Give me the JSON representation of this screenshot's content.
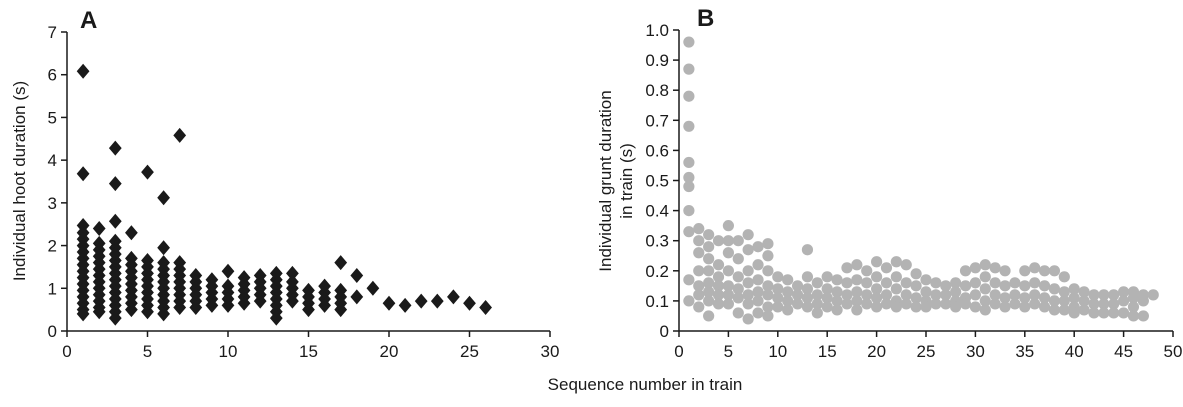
{
  "shared_xlabel": "Sequence number in train",
  "chart_data": [
    {
      "panel": "A",
      "type": "scatter",
      "marker": "diamond",
      "color": "#1a1a1a",
      "ylabel": [
        "Individual hoot duration (s)"
      ],
      "xlim": [
        0,
        30
      ],
      "ylim": [
        0,
        7
      ],
      "xticks": [
        0,
        5,
        10,
        15,
        20,
        25,
        30
      ],
      "yticks": [
        0,
        1,
        2,
        3,
        4,
        5,
        6,
        7
      ],
      "points": [
        [
          1,
          6.08
        ],
        [
          1,
          3.68
        ],
        [
          1,
          2.47
        ],
        [
          1,
          2.3
        ],
        [
          1,
          2.15
        ],
        [
          1,
          2.0
        ],
        [
          1,
          1.85
        ],
        [
          1,
          1.7
        ],
        [
          1,
          1.55
        ],
        [
          1,
          1.4
        ],
        [
          1,
          1.25
        ],
        [
          1,
          1.1
        ],
        [
          1,
          0.95
        ],
        [
          1,
          0.8
        ],
        [
          1,
          0.65
        ],
        [
          1,
          0.5
        ],
        [
          1,
          0.4
        ],
        [
          2,
          2.4
        ],
        [
          2,
          2.05
        ],
        [
          2,
          1.9
        ],
        [
          2,
          1.75
        ],
        [
          2,
          1.6
        ],
        [
          2,
          1.45
        ],
        [
          2,
          1.3
        ],
        [
          2,
          1.15
        ],
        [
          2,
          1.0
        ],
        [
          2,
          0.85
        ],
        [
          2,
          0.7
        ],
        [
          2,
          0.55
        ],
        [
          2,
          0.45
        ],
        [
          3,
          4.28
        ],
        [
          3,
          3.45
        ],
        [
          3,
          2.57
        ],
        [
          3,
          2.1
        ],
        [
          3,
          1.95
        ],
        [
          3,
          1.8
        ],
        [
          3,
          1.65
        ],
        [
          3,
          1.5
        ],
        [
          3,
          1.35
        ],
        [
          3,
          1.2
        ],
        [
          3,
          1.05
        ],
        [
          3,
          0.9
        ],
        [
          3,
          0.75
        ],
        [
          3,
          0.6
        ],
        [
          3,
          0.45
        ],
        [
          3,
          0.3
        ],
        [
          4,
          2.3
        ],
        [
          4,
          1.7
        ],
        [
          4,
          1.55
        ],
        [
          4,
          1.4
        ],
        [
          4,
          1.25
        ],
        [
          4,
          1.1
        ],
        [
          4,
          0.95
        ],
        [
          4,
          0.8
        ],
        [
          4,
          0.65
        ],
        [
          4,
          0.5
        ],
        [
          5,
          3.72
        ],
        [
          5,
          1.65
        ],
        [
          5,
          1.5
        ],
        [
          5,
          1.35
        ],
        [
          5,
          1.2
        ],
        [
          5,
          1.05
        ],
        [
          5,
          0.9
        ],
        [
          5,
          0.75
        ],
        [
          5,
          0.6
        ],
        [
          5,
          0.45
        ],
        [
          6,
          3.12
        ],
        [
          6,
          1.95
        ],
        [
          6,
          1.6
        ],
        [
          6,
          1.45
        ],
        [
          6,
          1.3
        ],
        [
          6,
          1.15
        ],
        [
          6,
          1.0
        ],
        [
          6,
          0.85
        ],
        [
          6,
          0.7
        ],
        [
          6,
          0.55
        ],
        [
          6,
          0.4
        ],
        [
          7,
          4.58
        ],
        [
          7,
          1.6
        ],
        [
          7,
          1.45
        ],
        [
          7,
          1.3
        ],
        [
          7,
          1.15
        ],
        [
          7,
          1.0
        ],
        [
          7,
          0.85
        ],
        [
          7,
          0.7
        ],
        [
          7,
          0.55
        ],
        [
          8,
          1.3
        ],
        [
          8,
          1.15
        ],
        [
          8,
          1.0
        ],
        [
          8,
          0.85
        ],
        [
          8,
          0.7
        ],
        [
          8,
          0.55
        ],
        [
          9,
          1.2
        ],
        [
          9,
          1.05
        ],
        [
          9,
          0.9
        ],
        [
          9,
          0.75
        ],
        [
          9,
          0.6
        ],
        [
          10,
          1.4
        ],
        [
          10,
          1.05
        ],
        [
          10,
          0.9
        ],
        [
          10,
          0.75
        ],
        [
          10,
          0.6
        ],
        [
          11,
          1.25
        ],
        [
          11,
          1.1
        ],
        [
          11,
          0.95
        ],
        [
          11,
          0.8
        ],
        [
          11,
          0.65
        ],
        [
          12,
          1.3
        ],
        [
          12,
          1.15
        ],
        [
          12,
          1.0
        ],
        [
          12,
          0.85
        ],
        [
          12,
          0.7
        ],
        [
          13,
          1.35
        ],
        [
          13,
          1.2
        ],
        [
          13,
          1.05
        ],
        [
          13,
          0.9
        ],
        [
          13,
          0.75
        ],
        [
          13,
          0.6
        ],
        [
          13,
          0.45
        ],
        [
          13,
          0.3
        ],
        [
          14,
          1.35
        ],
        [
          14,
          1.15
        ],
        [
          14,
          1.0
        ],
        [
          14,
          0.85
        ],
        [
          14,
          0.7
        ],
        [
          15,
          0.95
        ],
        [
          15,
          0.8
        ],
        [
          15,
          0.65
        ],
        [
          15,
          0.5
        ],
        [
          16,
          1.05
        ],
        [
          16,
          0.9
        ],
        [
          16,
          0.75
        ],
        [
          16,
          0.6
        ],
        [
          17,
          1.6
        ],
        [
          17,
          0.95
        ],
        [
          17,
          0.8
        ],
        [
          17,
          0.65
        ],
        [
          17,
          0.5
        ],
        [
          18,
          1.3
        ],
        [
          18,
          0.8
        ],
        [
          19,
          1.0
        ],
        [
          20,
          0.65
        ],
        [
          21,
          0.6
        ],
        [
          22,
          0.7
        ],
        [
          23,
          0.7
        ],
        [
          24,
          0.8
        ],
        [
          25,
          0.65
        ],
        [
          26,
          0.55
        ]
      ]
    },
    {
      "panel": "B",
      "type": "scatter",
      "marker": "circle",
      "color": "#b3b3b3",
      "ylabel": [
        "Individual grunt duration",
        "in train (s)"
      ],
      "xlim": [
        0,
        50
      ],
      "ylim": [
        0,
        1.0
      ],
      "xticks": [
        0,
        5,
        10,
        15,
        20,
        25,
        30,
        35,
        40,
        45,
        50
      ],
      "yticks": [
        0,
        0.1,
        0.2,
        0.3,
        0.4,
        0.5,
        0.6,
        0.7,
        0.8,
        0.9,
        1.0
      ],
      "ytick_labels": [
        "0",
        "0.1",
        "0.2",
        "0.3",
        "0.4",
        "0.5",
        "0.6",
        "0.7",
        "0.8",
        "0.9",
        "1.0"
      ],
      "points": [
        [
          1,
          0.96
        ],
        [
          1,
          0.87
        ],
        [
          1,
          0.78
        ],
        [
          1,
          0.68
        ],
        [
          1,
          0.56
        ],
        [
          1,
          0.51
        ],
        [
          1,
          0.48
        ],
        [
          1,
          0.4
        ],
        [
          1,
          0.33
        ],
        [
          1,
          0.17
        ],
        [
          1,
          0.1
        ],
        [
          2,
          0.34
        ],
        [
          2,
          0.3
        ],
        [
          2,
          0.26
        ],
        [
          2,
          0.2
        ],
        [
          2,
          0.15
        ],
        [
          2,
          0.12
        ],
        [
          2,
          0.08
        ],
        [
          3,
          0.32
        ],
        [
          3,
          0.28
        ],
        [
          3,
          0.24
        ],
        [
          3,
          0.2
        ],
        [
          3,
          0.16
        ],
        [
          3,
          0.13
        ],
        [
          3,
          0.1
        ],
        [
          3,
          0.05
        ],
        [
          4,
          0.3
        ],
        [
          4,
          0.22
        ],
        [
          4,
          0.18
        ],
        [
          4,
          0.15
        ],
        [
          4,
          0.12
        ],
        [
          4,
          0.09
        ],
        [
          5,
          0.35
        ],
        [
          5,
          0.3
        ],
        [
          5,
          0.26
        ],
        [
          5,
          0.2
        ],
        [
          5,
          0.15
        ],
        [
          5,
          0.12
        ],
        [
          5,
          0.09
        ],
        [
          6,
          0.3
        ],
        [
          6,
          0.24
        ],
        [
          6,
          0.18
        ],
        [
          6,
          0.14
        ],
        [
          6,
          0.11
        ],
        [
          6,
          0.06
        ],
        [
          7,
          0.32
        ],
        [
          7,
          0.27
        ],
        [
          7,
          0.2
        ],
        [
          7,
          0.16
        ],
        [
          7,
          0.12
        ],
        [
          7,
          0.09
        ],
        [
          7,
          0.04
        ],
        [
          8,
          0.28
        ],
        [
          8,
          0.22
        ],
        [
          8,
          0.17
        ],
        [
          8,
          0.13
        ],
        [
          8,
          0.1
        ],
        [
          8,
          0.06
        ],
        [
          9,
          0.29
        ],
        [
          9,
          0.25
        ],
        [
          9,
          0.2
        ],
        [
          9,
          0.15
        ],
        [
          9,
          0.12
        ],
        [
          9,
          0.08
        ],
        [
          9,
          0.05
        ],
        [
          10,
          0.18
        ],
        [
          10,
          0.14
        ],
        [
          10,
          0.11
        ],
        [
          10,
          0.08
        ],
        [
          11,
          0.17
        ],
        [
          11,
          0.13
        ],
        [
          11,
          0.1
        ],
        [
          11,
          0.07
        ],
        [
          12,
          0.15
        ],
        [
          12,
          0.12
        ],
        [
          12,
          0.09
        ],
        [
          13,
          0.27
        ],
        [
          13,
          0.18
        ],
        [
          13,
          0.14
        ],
        [
          13,
          0.11
        ],
        [
          13,
          0.08
        ],
        [
          14,
          0.16
        ],
        [
          14,
          0.12
        ],
        [
          14,
          0.09
        ],
        [
          14,
          0.06
        ],
        [
          15,
          0.18
        ],
        [
          15,
          0.14
        ],
        [
          15,
          0.11
        ],
        [
          15,
          0.08
        ],
        [
          16,
          0.17
        ],
        [
          16,
          0.13
        ],
        [
          16,
          0.1
        ],
        [
          16,
          0.07
        ],
        [
          17,
          0.21
        ],
        [
          17,
          0.16
        ],
        [
          17,
          0.12
        ],
        [
          17,
          0.09
        ],
        [
          18,
          0.22
        ],
        [
          18,
          0.17
        ],
        [
          18,
          0.13
        ],
        [
          18,
          0.1
        ],
        [
          18,
          0.07
        ],
        [
          19,
          0.2
        ],
        [
          19,
          0.16
        ],
        [
          19,
          0.12
        ],
        [
          19,
          0.09
        ],
        [
          20,
          0.23
        ],
        [
          20,
          0.18
        ],
        [
          20,
          0.14
        ],
        [
          20,
          0.11
        ],
        [
          20,
          0.08
        ],
        [
          21,
          0.21
        ],
        [
          21,
          0.16
        ],
        [
          21,
          0.12
        ],
        [
          21,
          0.09
        ],
        [
          22,
          0.23
        ],
        [
          22,
          0.18
        ],
        [
          22,
          0.14
        ],
        [
          22,
          0.1
        ],
        [
          22,
          0.08
        ],
        [
          23,
          0.22
        ],
        [
          23,
          0.16
        ],
        [
          23,
          0.12
        ],
        [
          23,
          0.09
        ],
        [
          24,
          0.19
        ],
        [
          24,
          0.15
        ],
        [
          24,
          0.11
        ],
        [
          24,
          0.08
        ],
        [
          25,
          0.17
        ],
        [
          25,
          0.13
        ],
        [
          25,
          0.1
        ],
        [
          25,
          0.08
        ],
        [
          26,
          0.16
        ],
        [
          26,
          0.12
        ],
        [
          26,
          0.09
        ],
        [
          27,
          0.15
        ],
        [
          27,
          0.12
        ],
        [
          27,
          0.09
        ],
        [
          28,
          0.16
        ],
        [
          28,
          0.13
        ],
        [
          28,
          0.1
        ],
        [
          28,
          0.08
        ],
        [
          29,
          0.2
        ],
        [
          29,
          0.15
        ],
        [
          29,
          0.11
        ],
        [
          29,
          0.09
        ],
        [
          30,
          0.21
        ],
        [
          30,
          0.16
        ],
        [
          30,
          0.12
        ],
        [
          30,
          0.08
        ],
        [
          31,
          0.22
        ],
        [
          31,
          0.18
        ],
        [
          31,
          0.14
        ],
        [
          31,
          0.1
        ],
        [
          31,
          0.07
        ],
        [
          32,
          0.21
        ],
        [
          32,
          0.16
        ],
        [
          32,
          0.12
        ],
        [
          32,
          0.09
        ],
        [
          33,
          0.2
        ],
        [
          33,
          0.15
        ],
        [
          33,
          0.11
        ],
        [
          33,
          0.08
        ],
        [
          34,
          0.16
        ],
        [
          34,
          0.12
        ],
        [
          34,
          0.09
        ],
        [
          35,
          0.2
        ],
        [
          35,
          0.15
        ],
        [
          35,
          0.11
        ],
        [
          35,
          0.08
        ],
        [
          36,
          0.21
        ],
        [
          36,
          0.16
        ],
        [
          36,
          0.12
        ],
        [
          36,
          0.09
        ],
        [
          37,
          0.2
        ],
        [
          37,
          0.15
        ],
        [
          37,
          0.11
        ],
        [
          37,
          0.08
        ],
        [
          38,
          0.2
        ],
        [
          38,
          0.14
        ],
        [
          38,
          0.1
        ],
        [
          38,
          0.07
        ],
        [
          39,
          0.18
        ],
        [
          39,
          0.13
        ],
        [
          39,
          0.1
        ],
        [
          39,
          0.07
        ],
        [
          40,
          0.14
        ],
        [
          40,
          0.11
        ],
        [
          40,
          0.08
        ],
        [
          40,
          0.06
        ],
        [
          41,
          0.13
        ],
        [
          41,
          0.1
        ],
        [
          41,
          0.07
        ],
        [
          42,
          0.12
        ],
        [
          42,
          0.09
        ],
        [
          42,
          0.06
        ],
        [
          43,
          0.12
        ],
        [
          43,
          0.09
        ],
        [
          43,
          0.06
        ],
        [
          44,
          0.12
        ],
        [
          44,
          0.09
        ],
        [
          44,
          0.06
        ],
        [
          45,
          0.13
        ],
        [
          45,
          0.1
        ],
        [
          45,
          0.06
        ],
        [
          46,
          0.13
        ],
        [
          46,
          0.11
        ],
        [
          46,
          0.08
        ],
        [
          46,
          0.05
        ],
        [
          47,
          0.12
        ],
        [
          47,
          0.1
        ],
        [
          47,
          0.05
        ],
        [
          48,
          0.12
        ]
      ]
    }
  ]
}
